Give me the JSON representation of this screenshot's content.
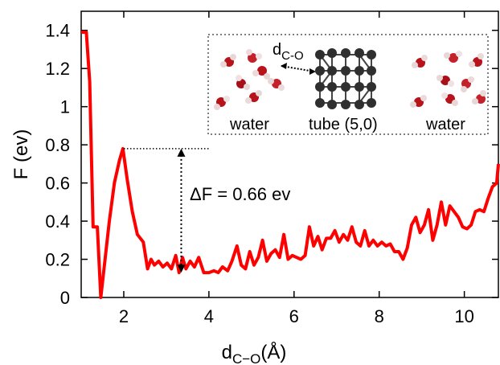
{
  "chart_data": {
    "type": "line",
    "xlabel_main": "d",
    "xlabel_sub": "C−O",
    "xlabel_unit": "(Å)",
    "ylabel": "F (ev)",
    "xlim": [
      1.0,
      10.8
    ],
    "ylim": [
      0,
      1.5
    ],
    "x_ticks": [
      2,
      4,
      6,
      8,
      10
    ],
    "y_ticks": [
      0,
      0.2,
      0.4,
      0.6,
      0.8,
      1,
      1.2,
      1.4
    ],
    "line_color": "#ff0000",
    "series": [
      {
        "x": [
          1.0,
          1.12,
          1.2,
          1.28,
          1.38,
          1.46,
          1.56,
          1.66,
          1.78,
          1.9,
          1.98,
          2.08,
          2.2,
          2.32,
          2.46,
          2.56,
          2.64,
          2.72,
          2.82,
          2.92,
          3.02,
          3.12,
          3.22,
          3.3,
          3.38,
          3.46,
          3.56,
          3.66,
          3.76,
          3.88,
          4.0,
          4.12,
          4.22,
          4.32,
          4.44,
          4.54,
          4.66,
          4.76,
          4.86,
          4.96,
          5.06,
          5.16,
          5.26,
          5.36,
          5.46,
          5.56,
          5.66,
          5.76,
          5.86,
          5.96,
          6.06,
          6.16,
          6.26,
          6.36,
          6.46,
          6.56,
          6.66,
          6.76,
          6.86,
          6.96,
          7.06,
          7.16,
          7.26,
          7.36,
          7.46,
          7.56,
          7.66,
          7.76,
          7.86,
          7.96,
          8.06,
          8.16,
          8.26,
          8.36,
          8.46,
          8.56,
          8.66,
          8.76,
          8.86,
          8.96,
          9.06,
          9.16,
          9.26,
          9.36,
          9.46,
          9.56,
          9.66,
          9.76,
          9.86,
          9.96,
          10.06,
          10.16,
          10.26,
          10.36,
          10.46,
          10.56,
          10.66,
          10.76,
          10.8
        ],
        "y": [
          1.39,
          1.39,
          1.13,
          0.37,
          0.37,
          0.0,
          0.2,
          0.4,
          0.6,
          0.72,
          0.78,
          0.62,
          0.45,
          0.33,
          0.29,
          0.15,
          0.2,
          0.17,
          0.19,
          0.16,
          0.18,
          0.15,
          0.22,
          0.13,
          0.21,
          0.15,
          0.19,
          0.16,
          0.21,
          0.13,
          0.13,
          0.14,
          0.13,
          0.16,
          0.14,
          0.19,
          0.27,
          0.17,
          0.15,
          0.24,
          0.17,
          0.21,
          0.3,
          0.19,
          0.23,
          0.25,
          0.21,
          0.33,
          0.2,
          0.22,
          0.21,
          0.2,
          0.22,
          0.37,
          0.27,
          0.32,
          0.25,
          0.31,
          0.31,
          0.35,
          0.29,
          0.33,
          0.3,
          0.37,
          0.29,
          0.27,
          0.35,
          0.27,
          0.3,
          0.27,
          0.29,
          0.27,
          0.28,
          0.24,
          0.24,
          0.2,
          0.26,
          0.38,
          0.42,
          0.34,
          0.38,
          0.46,
          0.3,
          0.38,
          0.5,
          0.38,
          0.48,
          0.45,
          0.42,
          0.37,
          0.36,
          0.38,
          0.45,
          0.46,
          0.45,
          0.52,
          0.58,
          0.6,
          0.7
        ]
      }
    ],
    "annotation": {
      "delta_label": "ΔF = 0.66 ev",
      "arrow_x": 3.35,
      "arrow_top_y": 0.78,
      "arrow_bottom_y": 0.13,
      "guide_x_start": 2.0,
      "guide_x_end": 4.0
    }
  },
  "inset": {
    "label_d": "d",
    "label_d_sub": "C-O",
    "label_water_left": "water",
    "label_tube": "tube (5,0)",
    "label_water_right": "water"
  }
}
